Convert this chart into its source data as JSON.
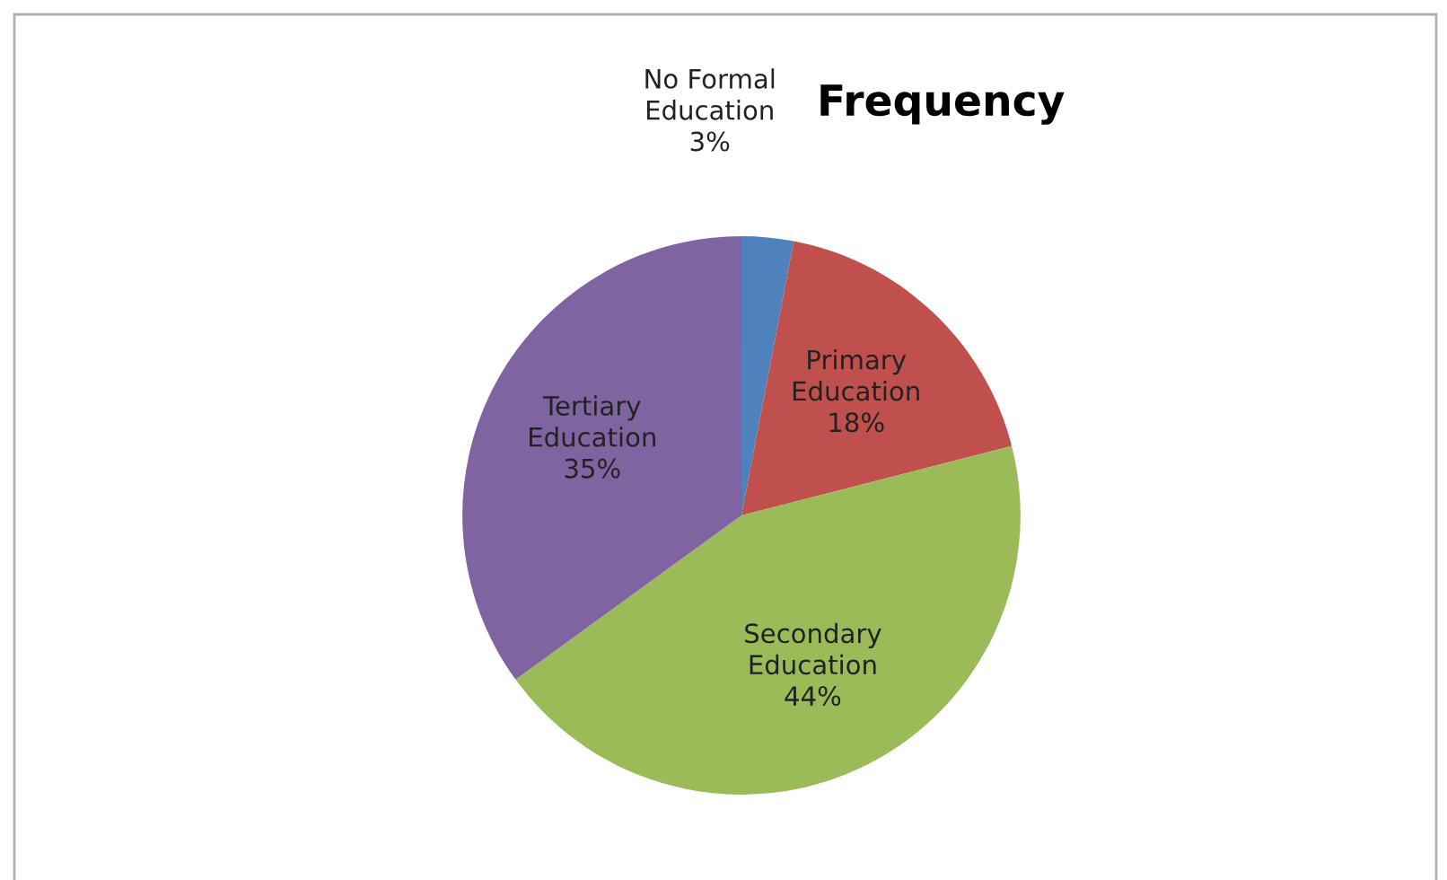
{
  "chart_data": {
    "type": "pie",
    "title": "Frequency",
    "categories": [
      "No Formal Education",
      "Primary Education",
      "Secondary Education",
      "Tertiary Education"
    ],
    "values": [
      3,
      18,
      44,
      35
    ],
    "value_labels": [
      "3%",
      "18%",
      "44%",
      "35%"
    ],
    "colors": [
      "#4f81bd",
      "#c0504d",
      "#9bbb59",
      "#8064a2"
    ],
    "legend": false
  }
}
